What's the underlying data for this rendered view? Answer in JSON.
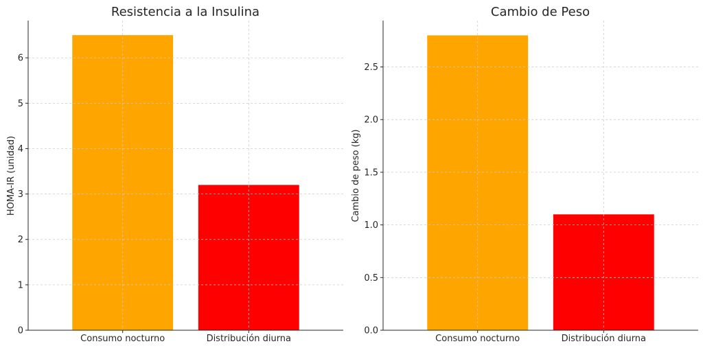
{
  "chart_data": [
    {
      "type": "bar",
      "title": "Resistencia a la Insulina",
      "xlabel": "",
      "ylabel": "HOMA-IR (unidad)",
      "categories": [
        "Consumo nocturno",
        "Distribución diurna"
      ],
      "values": [
        6.5,
        3.2
      ],
      "colors": [
        "#FFA500",
        "#FF0000"
      ],
      "ylim": [
        0,
        6.82
      ],
      "yticks": [
        0,
        1,
        2,
        3,
        4,
        5,
        6
      ],
      "grid": true
    },
    {
      "type": "bar",
      "title": "Cambio de Peso",
      "xlabel": "",
      "ylabel": "Cambio de peso (kg)",
      "categories": [
        "Consumo nocturno",
        "Distribución diurna"
      ],
      "values": [
        2.8,
        1.1
      ],
      "colors": [
        "#FFA500",
        "#FF0000"
      ],
      "ylim": [
        0,
        2.94
      ],
      "yticks": [
        0.0,
        0.5,
        1.0,
        1.5,
        2.0,
        2.5
      ],
      "grid": true
    }
  ]
}
